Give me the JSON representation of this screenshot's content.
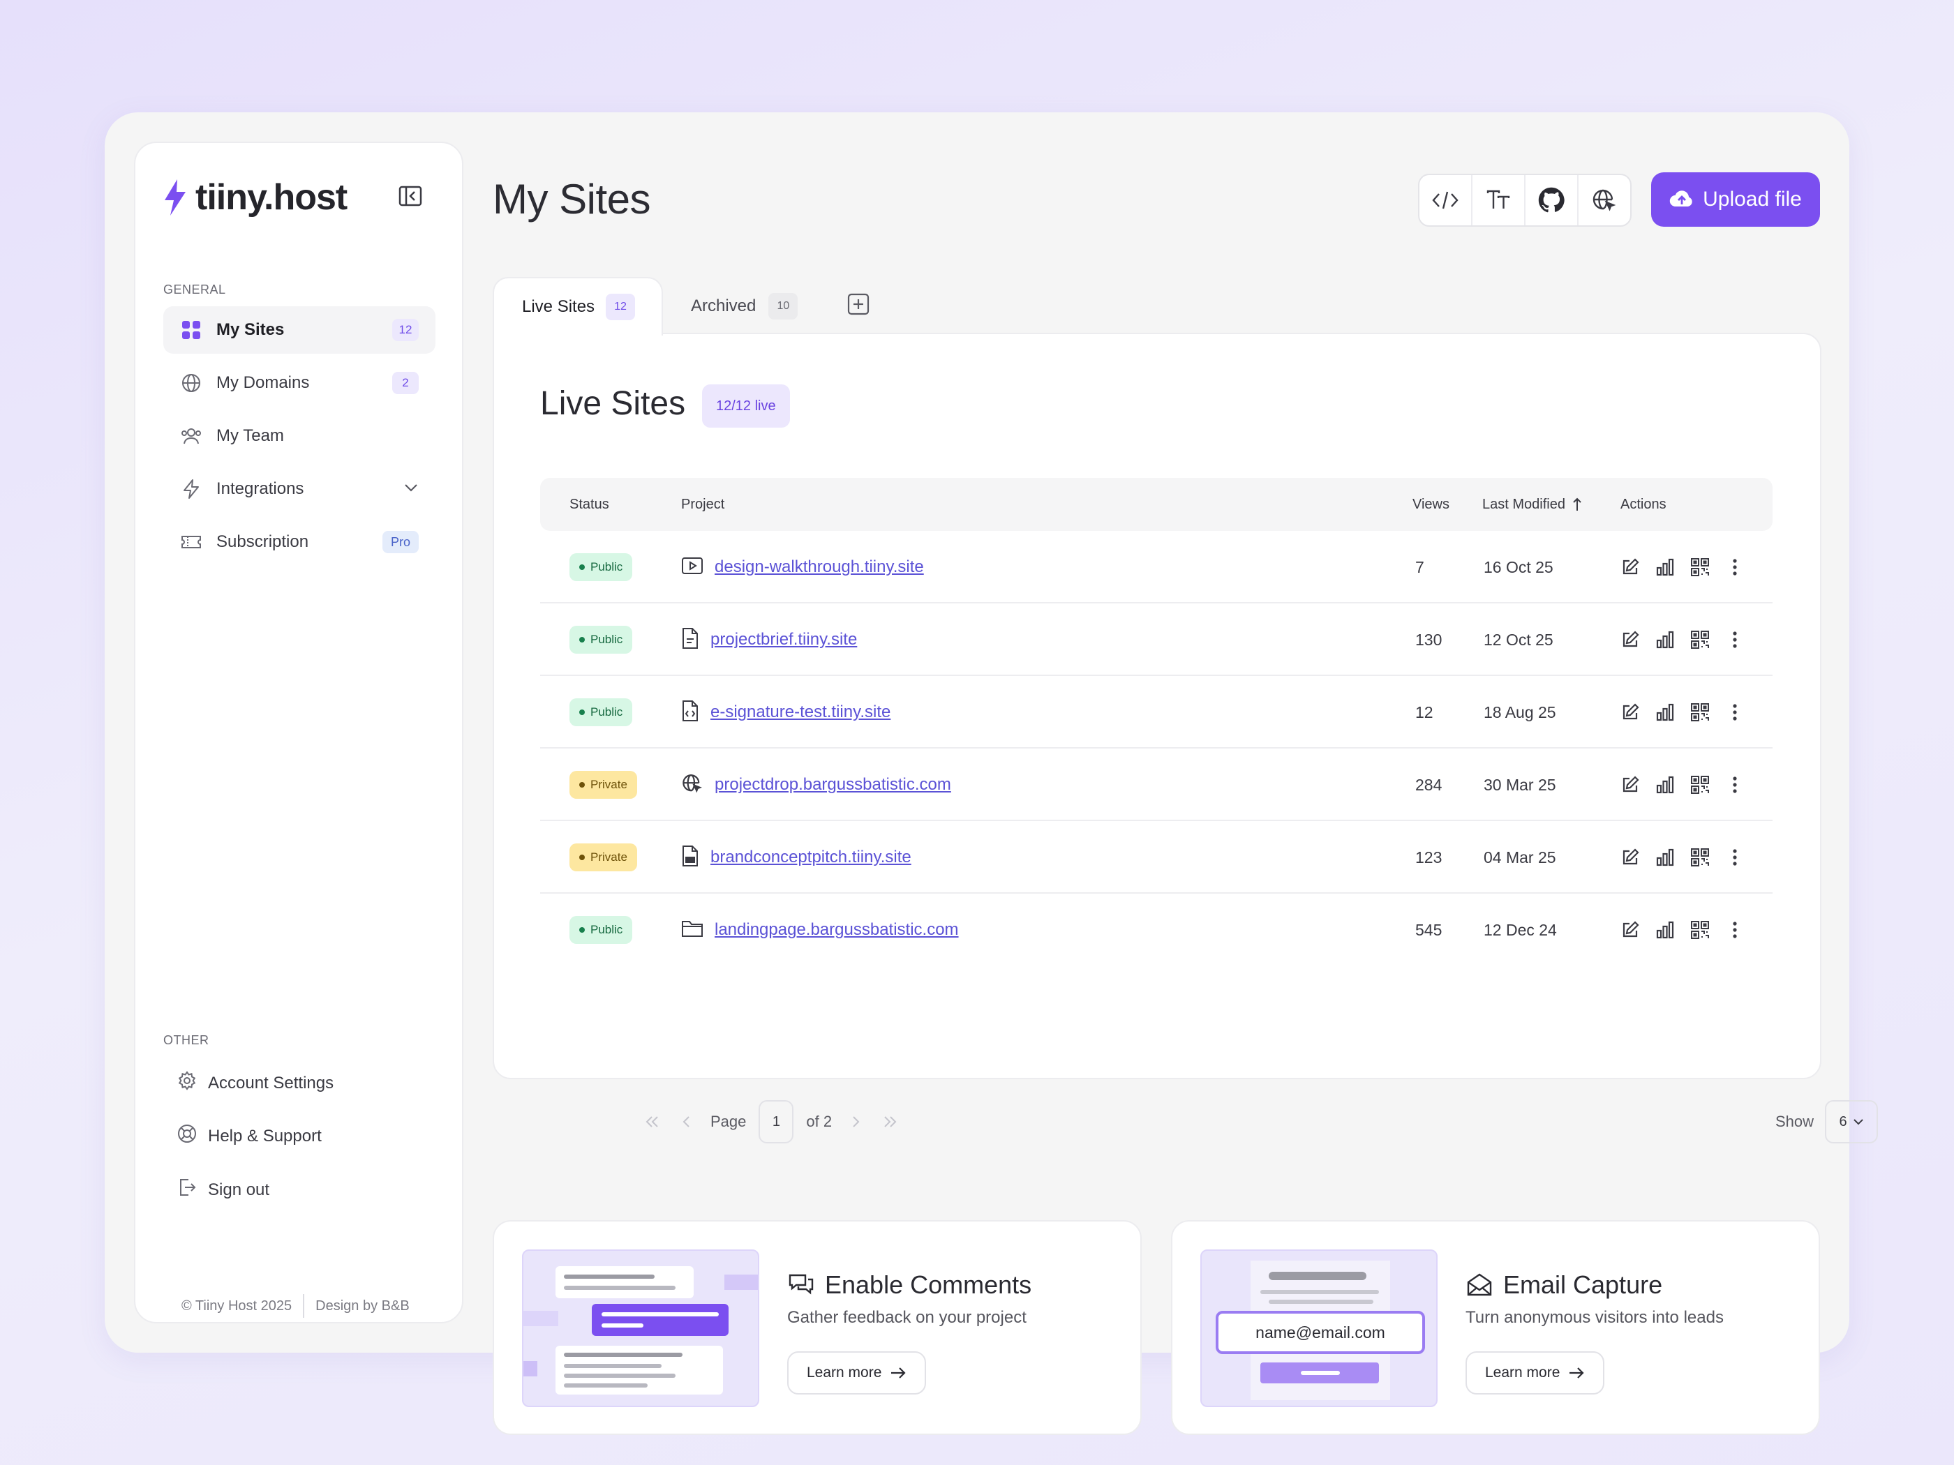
{
  "brand": {
    "name": "tiiny.host",
    "accent": "#7b4ff0"
  },
  "sidebar": {
    "general_label": "GENERAL",
    "items": [
      {
        "label": "My Sites",
        "badge": "12",
        "icon": "grid-icon",
        "active": true
      },
      {
        "label": "My Domains",
        "badge": "2",
        "icon": "globe-icon"
      },
      {
        "label": "My Team",
        "icon": "team-icon"
      },
      {
        "label": "Integrations",
        "icon": "lightning-icon",
        "expandable": true
      },
      {
        "label": "Subscription",
        "badge": "Pro",
        "icon": "ticket-icon"
      }
    ],
    "other_label": "OTHER",
    "other_items": [
      {
        "label": "Account Settings",
        "icon": "gear-icon"
      },
      {
        "label": "Help & Support",
        "icon": "lifebuoy-icon"
      },
      {
        "label": "Sign out",
        "icon": "sign-out-icon"
      }
    ],
    "footer": {
      "copyright": "© Tiiny Host 2025",
      "credit": "Design by B&B"
    }
  },
  "header": {
    "title": "My Sites",
    "tools": [
      "code-icon",
      "text-size-icon",
      "github-icon",
      "globe-cursor-icon"
    ],
    "upload_label": "Upload file"
  },
  "tabs": [
    {
      "label": "Live Sites",
      "count": "12",
      "active": true
    },
    {
      "label": "Archived",
      "count": "10"
    }
  ],
  "panel": {
    "title": "Live Sites",
    "live_badge": "12/12 live",
    "columns": {
      "status": "Status",
      "project": "Project",
      "views": "Views",
      "modified": "Last Modified",
      "actions": "Actions"
    },
    "rows": [
      {
        "status": "Public",
        "type_icon": "video-icon",
        "project": "design-walkthrough.tiiny.site",
        "views": "7",
        "modified": "16 Oct 25"
      },
      {
        "status": "Public",
        "type_icon": "document-icon",
        "project": "projectbrief.tiiny.site",
        "views": "130",
        "modified": "12 Oct 25"
      },
      {
        "status": "Public",
        "type_icon": "code-file-icon",
        "project": "e-signature-test.tiiny.site",
        "views": "12",
        "modified": "18 Aug 25"
      },
      {
        "status": "Private",
        "type_icon": "globe-cursor-icon",
        "project": "projectdrop.bargussbatistic.com",
        "views": "284",
        "modified": "30 Mar 25"
      },
      {
        "status": "Private",
        "type_icon": "pdf-file-icon",
        "project": "brandconceptpitch.tiiny.site",
        "views": "123",
        "modified": "04 Mar 25"
      },
      {
        "status": "Public",
        "type_icon": "folder-icon",
        "project": "landingpage.bargussbatistic.com",
        "views": "545",
        "modified": "12 Dec 24"
      }
    ],
    "pagination": {
      "page_label": "Page",
      "page": "1",
      "of_label": "of 2",
      "show_label": "Show",
      "show_value": "6"
    }
  },
  "promos": [
    {
      "title": "Enable Comments",
      "description": "Gather feedback on your project",
      "button": "Learn more",
      "icon": "comments-icon"
    },
    {
      "title": "Email Capture",
      "description": "Turn anonymous visitors into leads",
      "button": "Learn more",
      "icon": "envelope-icon",
      "sample_email": "name@email.com"
    }
  ],
  "colors": {
    "public_bg": "#d7f7e5",
    "private_bg": "#fde7a0",
    "link": "#5b52d6"
  }
}
